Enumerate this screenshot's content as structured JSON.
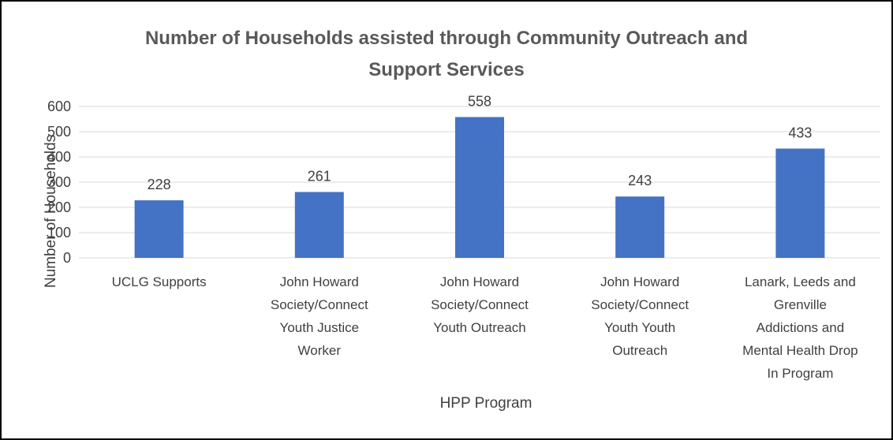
{
  "chart_data": {
    "type": "bar",
    "title_lines": [
      "Number of Households assisted through Community Outreach and",
      "Support Services"
    ],
    "xlabel": "HPP Program",
    "ylabel": "Number of Households",
    "ylim": [
      0,
      600
    ],
    "y_ticks": [
      "0",
      "100",
      "200",
      "300",
      "400",
      "500",
      "600"
    ],
    "grid": true,
    "legend": "none",
    "categories": [
      [
        "UCLG Supports"
      ],
      [
        "John Howard",
        "Society/Connect",
        "Youth Justice",
        "Worker"
      ],
      [
        "John Howard",
        "Society/Connect",
        "Youth Outreach"
      ],
      [
        "John Howard",
        "Society/Connect",
        "Youth Youth",
        "Outreach"
      ],
      [
        "Lanark, Leeds and",
        "Grenville",
        "Addictions and",
        "Mental Health Drop",
        "In Program"
      ]
    ],
    "values": [
      228,
      261,
      558,
      243,
      433
    ],
    "data_labels": [
      "228",
      "261",
      "558",
      "243",
      "433"
    ],
    "colors": {
      "bar": "#4472C4",
      "grid": "#D9D9D9",
      "title": "#595959",
      "text": "#404040"
    }
  }
}
